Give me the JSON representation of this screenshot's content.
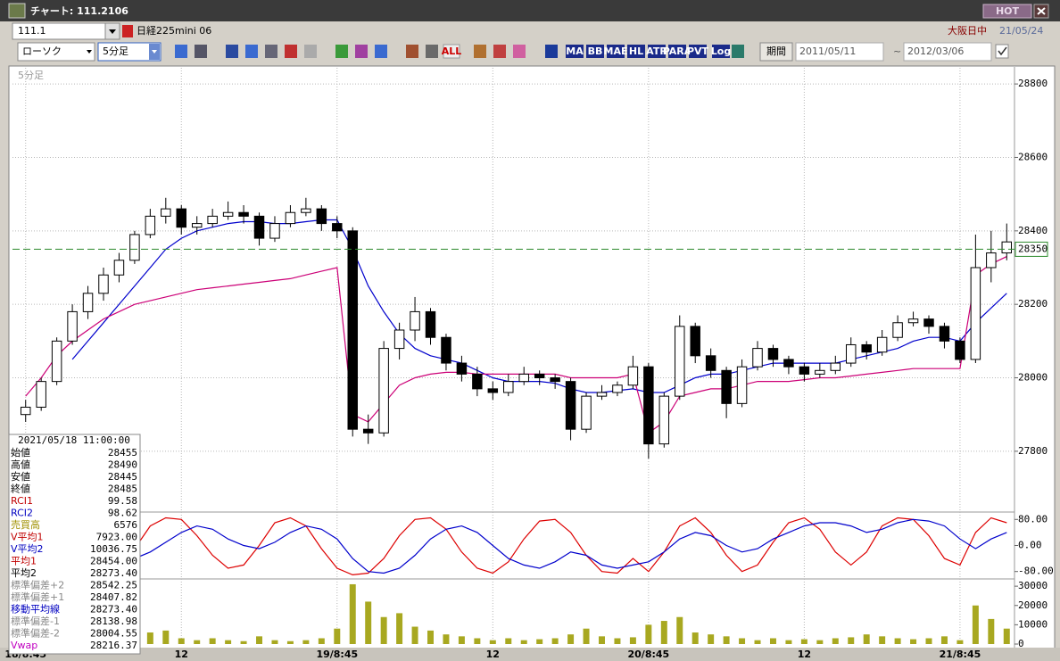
{
  "title_bar": {
    "title": "チャート: 111.2106",
    "hot": "HOT"
  },
  "symbol_bar": {
    "code": "111.1",
    "name": "日経225mini 06",
    "market": "大阪日中",
    "date": "21/05/24"
  },
  "toolbar": {
    "chart_style": "ローソク",
    "interval": "5分足",
    "buttons": [
      "MA",
      "BB",
      "MAE",
      "HL",
      "ATR",
      "PARA",
      "PVT",
      "Log"
    ],
    "all": "ALL",
    "period_label": "期間",
    "from": "2011/05/11",
    "tilde": "~",
    "to": "2012/03/06"
  },
  "info_panel": {
    "datetime": "2021/05/18 11:00:00",
    "rows": [
      {
        "label": "始値",
        "value": "28455",
        "color": "#000000"
      },
      {
        "label": "高値",
        "value": "28490",
        "color": "#000000"
      },
      {
        "label": "安値",
        "value": "28445",
        "color": "#000000"
      },
      {
        "label": "終値",
        "value": "28485",
        "color": "#000000"
      },
      {
        "label": "RCI1",
        "value": "99.58",
        "color": "#c00000"
      },
      {
        "label": "RCI2",
        "value": "98.62",
        "color": "#0000c0"
      },
      {
        "label": "売買高",
        "value": "6576",
        "color": "#a09000"
      },
      {
        "label": "V平均1",
        "value": "7923.00",
        "color": "#c00000"
      },
      {
        "label": "V平均2",
        "value": "10036.75",
        "color": "#0000c0"
      },
      {
        "label": "平均1",
        "value": "28454.00",
        "color": "#c00000"
      },
      {
        "label": "平均2",
        "value": "28273.40",
        "color": "#000000"
      },
      {
        "label": "標準偏差+2",
        "value": "28542.25",
        "color": "#888888"
      },
      {
        "label": "標準偏差+1",
        "value": "28407.82",
        "color": "#888888"
      },
      {
        "label": "移動平均線",
        "value": "28273.40",
        "color": "#0000c0"
      },
      {
        "label": "標準偏差-1",
        "value": "28138.98",
        "color": "#888888"
      },
      {
        "label": "標準偏差-2",
        "value": "28004.55",
        "color": "#888888"
      },
      {
        "label": "Vwap",
        "value": "28216.37",
        "color": "#c000c0"
      }
    ]
  },
  "chart_data": [
    {
      "type": "candlestick",
      "label": "5分足",
      "xlim": [
        -0.5,
        63.5
      ],
      "xticks": [
        {
          "value": 0,
          "label": "18/8:45"
        },
        {
          "value": 10,
          "label": "12"
        },
        {
          "value": 20,
          "label": "19/8:45"
        },
        {
          "value": 30,
          "label": "12"
        },
        {
          "value": 40,
          "label": "20/8:45"
        },
        {
          "value": 50,
          "label": "12"
        },
        {
          "value": 60,
          "label": "21/8:45"
        }
      ],
      "ylim": [
        27637,
        28844
      ],
      "yticks": [
        27800,
        28000,
        28200,
        28400,
        28600,
        28800
      ],
      "grid": true,
      "up_color": "#ffffff",
      "down_color": "#000000",
      "reference_line": 28350,
      "reference_color": "#2e8b2e",
      "candles": [
        [
          27900,
          27940,
          27880,
          27920
        ],
        [
          27920,
          28000,
          27910,
          27990
        ],
        [
          27990,
          28110,
          27980,
          28100
        ],
        [
          28100,
          28200,
          28090,
          28180
        ],
        [
          28180,
          28250,
          28160,
          28230
        ],
        [
          28230,
          28300,
          28210,
          28280
        ],
        [
          28280,
          28340,
          28260,
          28320
        ],
        [
          28320,
          28400,
          28310,
          28390
        ],
        [
          28390,
          28460,
          28380,
          28440
        ],
        [
          28440,
          28490,
          28420,
          28460
        ],
        [
          28460,
          28470,
          28390,
          28410
        ],
        [
          28410,
          28440,
          28390,
          28420
        ],
        [
          28420,
          28460,
          28410,
          28440
        ],
        [
          28440,
          28480,
          28430,
          28450
        ],
        [
          28450,
          28470,
          28420,
          28440
        ],
        [
          28440,
          28450,
          28360,
          28380
        ],
        [
          28380,
          28440,
          28370,
          28420
        ],
        [
          28420,
          28470,
          28410,
          28450
        ],
        [
          28450,
          28490,
          28440,
          28460
        ],
        [
          28460,
          28470,
          28400,
          28420
        ],
        [
          28420,
          28440,
          28380,
          28400
        ],
        [
          28400,
          28410,
          27840,
          27860
        ],
        [
          27860,
          27900,
          27820,
          27850
        ],
        [
          27850,
          28100,
          27840,
          28080
        ],
        [
          28080,
          28150,
          28050,
          28130
        ],
        [
          28130,
          28220,
          28100,
          28180
        ],
        [
          28180,
          28190,
          28090,
          28110
        ],
        [
          28110,
          28120,
          28020,
          28040
        ],
        [
          28040,
          28060,
          27990,
          28010
        ],
        [
          28010,
          28030,
          27950,
          27970
        ],
        [
          27970,
          27990,
          27940,
          27960
        ],
        [
          27960,
          28010,
          27950,
          27990
        ],
        [
          27990,
          28030,
          27980,
          28010
        ],
        [
          28010,
          28020,
          27980,
          28000
        ],
        [
          28000,
          28010,
          27970,
          27990
        ],
        [
          27990,
          28000,
          27830,
          27860
        ],
        [
          27860,
          27960,
          27850,
          27950
        ],
        [
          27950,
          27980,
          27940,
          27960
        ],
        [
          27960,
          27990,
          27950,
          27980
        ],
        [
          27980,
          28060,
          27970,
          28030
        ],
        [
          28030,
          28040,
          27780,
          27820
        ],
        [
          27820,
          27960,
          27810,
          27950
        ],
        [
          27950,
          28170,
          27940,
          28140
        ],
        [
          28140,
          28150,
          28040,
          28060
        ],
        [
          28060,
          28080,
          28000,
          28020
        ],
        [
          28020,
          28030,
          27890,
          27930
        ],
        [
          27930,
          28050,
          27920,
          28030
        ],
        [
          28030,
          28100,
          28020,
          28080
        ],
        [
          28080,
          28090,
          28030,
          28050
        ],
        [
          28050,
          28060,
          28010,
          28030
        ],
        [
          28030,
          28040,
          27990,
          28010
        ],
        [
          28010,
          28040,
          28000,
          28020
        ],
        [
          28020,
          28060,
          28010,
          28040
        ],
        [
          28040,
          28110,
          28030,
          28090
        ],
        [
          28090,
          28100,
          28050,
          28070
        ],
        [
          28070,
          28130,
          28060,
          28110
        ],
        [
          28110,
          28170,
          28100,
          28150
        ],
        [
          28150,
          28180,
          28140,
          28160
        ],
        [
          28160,
          28170,
          28120,
          28140
        ],
        [
          28140,
          28150,
          28080,
          28100
        ],
        [
          28100,
          28110,
          28040,
          28050
        ],
        [
          28050,
          28390,
          28040,
          28300
        ],
        [
          28300,
          28400,
          28260,
          28340
        ],
        [
          28340,
          28420,
          28320,
          28370
        ]
      ],
      "series": [
        {
          "color": "#0000cc",
          "values": [
            null,
            null,
            null,
            28050,
            28100,
            28150,
            28200,
            28250,
            28300,
            28350,
            28380,
            28400,
            28410,
            28420,
            28425,
            28425,
            28420,
            28420,
            28425,
            28430,
            28430,
            28350,
            28250,
            28180,
            28120,
            28080,
            28060,
            28050,
            28040,
            28020,
            28000,
            27990,
            27990,
            27990,
            27985,
            27970,
            27960,
            27960,
            27965,
            27970,
            27960,
            27960,
            27980,
            28000,
            28010,
            28010,
            28020,
            28030,
            28040,
            28040,
            28040,
            28040,
            28040,
            28050,
            28060,
            28070,
            28080,
            28100,
            28110,
            28110,
            28100,
            28150,
            28190,
            28230
          ]
        },
        {
          "color": "#cc0077",
          "values": [
            27950,
            28000,
            28060,
            28100,
            28130,
            28160,
            28180,
            28200,
            28210,
            28220,
            28230,
            28240,
            28245,
            28250,
            28255,
            28260,
            28265,
            28270,
            28280,
            28290,
            28300,
            27900,
            27880,
            27930,
            27980,
            28000,
            28010,
            28015,
            28015,
            28010,
            28010,
            28010,
            28010,
            28010,
            28010,
            28000,
            28000,
            28000,
            28000,
            28010,
            27850,
            27880,
            27950,
            27960,
            27970,
            27970,
            27980,
            27990,
            27990,
            27990,
            27995,
            28000,
            28000,
            28005,
            28010,
            28015,
            28020,
            28025,
            28025,
            28025,
            28025,
            28280,
            28310,
            28330
          ]
        }
      ]
    },
    {
      "type": "line",
      "ylim": [
        -100,
        100
      ],
      "yticks": [
        {
          "value": 80,
          "label": "80.00"
        },
        {
          "value": 0,
          "label": "0.00"
        },
        {
          "value": -80,
          "label": "-80.00"
        }
      ],
      "series": [
        {
          "color": "#dd0000",
          "values": [
            60,
            85,
            70,
            20,
            -40,
            -80,
            -70,
            -10,
            60,
            85,
            80,
            30,
            -30,
            -70,
            -60,
            0,
            70,
            85,
            60,
            -10,
            -70,
            -90,
            -85,
            -40,
            30,
            80,
            85,
            50,
            -20,
            -70,
            -85,
            -50,
            20,
            75,
            80,
            40,
            -30,
            -80,
            -85,
            -40,
            -80,
            -20,
            60,
            85,
            40,
            -30,
            -80,
            -60,
            10,
            70,
            85,
            50,
            -20,
            -60,
            -20,
            60,
            85,
            80,
            30,
            -40,
            -60,
            40,
            85,
            70
          ]
        },
        {
          "color": "#0000cc",
          "values": [
            70,
            60,
            40,
            20,
            0,
            -20,
            -30,
            -40,
            -20,
            10,
            40,
            60,
            50,
            20,
            0,
            -10,
            10,
            40,
            60,
            50,
            20,
            -40,
            -80,
            -85,
            -70,
            -30,
            20,
            50,
            60,
            40,
            0,
            -40,
            -60,
            -70,
            -50,
            -20,
            -30,
            -60,
            -70,
            -60,
            -50,
            -20,
            20,
            40,
            30,
            0,
            -20,
            -10,
            20,
            40,
            60,
            70,
            70,
            60,
            40,
            50,
            70,
            80,
            75,
            60,
            20,
            -10,
            20,
            40
          ]
        }
      ]
    },
    {
      "type": "bar",
      "ylim": [
        0,
        33300
      ],
      "yticks": [
        0,
        10000,
        20000,
        30000
      ],
      "color": "#a8a820",
      "values": [
        5000,
        4000,
        6000,
        3000,
        4000,
        5000,
        3000,
        2000,
        6000,
        7000,
        3000,
        2000,
        3000,
        2000,
        1500,
        4000,
        2000,
        1500,
        2000,
        3000,
        8000,
        31000,
        22000,
        14000,
        16000,
        9000,
        7000,
        5000,
        4000,
        3000,
        2000,
        3000,
        2000,
        2500,
        3000,
        5000,
        8000,
        4000,
        3000,
        3500,
        10000,
        12000,
        14000,
        6000,
        5000,
        4000,
        3000,
        2000,
        3000,
        2000,
        2500,
        2000,
        3000,
        3500,
        5000,
        4000,
        3000,
        2500,
        3000,
        4000,
        2000,
        20000,
        13000,
        8000
      ]
    }
  ]
}
